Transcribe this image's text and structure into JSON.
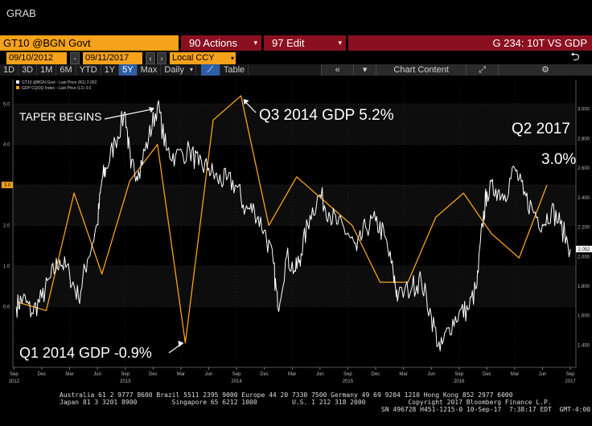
{
  "header": {
    "grab_label": "GRAB"
  },
  "toolbar": {
    "ticker": "GT10 @BGN Govt",
    "actions_label": "90 Actions",
    "edit_label": "97 Edit",
    "chart_title": "G 234: 10T VS GDP",
    "start_date": "09/10/2012",
    "end_date": "09/11/2017",
    "currency": "Local CCY",
    "periods": [
      "1D",
      "3D",
      "1M",
      "6M",
      "YTD",
      "1Y",
      "5Y",
      "Max"
    ],
    "active_period": "5Y",
    "frequency": "Daily",
    "table_label": "Table",
    "chart_content_label": "Chart Content"
  },
  "footer": {
    "line1": "Australia 61 2 9777 8600 Brazil 5511 2395 9000 Europe 44 20 7330 7500 Germany 49 69 9204 1210 Hong Kong 852 2977 6000",
    "line2": "Japan 81 3 3201 8900         Singapore 65 6212 1000         U.S. 1 212 318 2000           Copyright 2017 Bloomberg Finance L.P.",
    "line3": "SN 496728 H451-1215-0 10-Sep-17  7:38:17 EDT  GMT-4:00"
  },
  "chart_data": {
    "type": "line",
    "legend": [
      {
        "label": "GT10 @BGN Govt - Last Price (R1) 2.052",
        "color": "#ffffff"
      },
      {
        "label": "GDP CQOQ Index - Last Price (L1) 3.0",
        "color": "#f7a21b"
      }
    ],
    "legend_placement": "top-left",
    "left_axis": {
      "ticks": [
        0.0,
        1.0,
        2.0,
        3.0,
        4.0,
        5.0
      ],
      "tick_labels": [
        "0.0",
        "1.0",
        "2.0",
        "3.0",
        "4.0",
        "5.0"
      ],
      "range": [
        -1.5,
        5.6
      ],
      "current_value_label": "3.0"
    },
    "right_axis": {
      "ticks": [
        1.4,
        1.6,
        1.8,
        2.0,
        2.2,
        2.4,
        2.6,
        2.8,
        3.0
      ],
      "tick_labels": [
        "1.400",
        "1.600",
        "1.800",
        "2.000",
        "2.200",
        "2.400",
        "2.600",
        "2.800",
        "3.000"
      ],
      "range": [
        1.25,
        3.2
      ],
      "current_value_label": "2.052"
    },
    "x_axis": {
      "range": [
        2012.66,
        2017.72
      ],
      "ticks": [
        {
          "t": 2012.67,
          "label": "Sep",
          "year": "2012"
        },
        {
          "t": 2012.92,
          "label": "Dec",
          "year": ""
        },
        {
          "t": 2013.17,
          "label": "Mar",
          "year": ""
        },
        {
          "t": 2013.42,
          "label": "Jun",
          "year": ""
        },
        {
          "t": 2013.67,
          "label": "Sep",
          "year": "2013"
        },
        {
          "t": 2013.92,
          "label": "Dec",
          "year": ""
        },
        {
          "t": 2014.17,
          "label": "Mar",
          "year": ""
        },
        {
          "t": 2014.42,
          "label": "Jun",
          "year": ""
        },
        {
          "t": 2014.67,
          "label": "Sep",
          "year": "2014"
        },
        {
          "t": 2014.92,
          "label": "Dec",
          "year": ""
        },
        {
          "t": 2015.17,
          "label": "Mar",
          "year": ""
        },
        {
          "t": 2015.42,
          "label": "Jun",
          "year": ""
        },
        {
          "t": 2015.67,
          "label": "Sep",
          "year": "2015"
        },
        {
          "t": 2015.92,
          "label": "Dec",
          "year": ""
        },
        {
          "t": 2016.17,
          "label": "Mar",
          "year": ""
        },
        {
          "t": 2016.42,
          "label": "Jun",
          "year": ""
        },
        {
          "t": 2016.67,
          "label": "Sep",
          "year": "2016"
        },
        {
          "t": 2016.92,
          "label": "Dec",
          "year": ""
        },
        {
          "t": 2017.17,
          "label": "Mar",
          "year": ""
        },
        {
          "t": 2017.42,
          "label": "Jun",
          "year": ""
        },
        {
          "t": 2017.67,
          "label": "Sep",
          "year": "2017"
        }
      ]
    },
    "grid": true,
    "series": [
      {
        "name": "GT10 @BGN Govt",
        "axis": "right",
        "color": "#ffffff",
        "points": [
          [
            2012.69,
            1.66
          ],
          [
            2012.75,
            1.72
          ],
          [
            2012.83,
            1.62
          ],
          [
            2012.92,
            1.72
          ],
          [
            2013.0,
            1.86
          ],
          [
            2013.08,
            1.98
          ],
          [
            2013.17,
            1.88
          ],
          [
            2013.25,
            1.72
          ],
          [
            2013.33,
            1.98
          ],
          [
            2013.42,
            2.22
          ],
          [
            2013.46,
            2.52
          ],
          [
            2013.5,
            2.6
          ],
          [
            2013.58,
            2.78
          ],
          [
            2013.67,
            2.98
          ],
          [
            2013.72,
            2.6
          ],
          [
            2013.79,
            2.58
          ],
          [
            2013.88,
            2.8
          ],
          [
            2013.96,
            3.03
          ],
          [
            2014.04,
            2.72
          ],
          [
            2014.12,
            2.68
          ],
          [
            2014.25,
            2.72
          ],
          [
            2014.33,
            2.62
          ],
          [
            2014.42,
            2.6
          ],
          [
            2014.5,
            2.52
          ],
          [
            2014.58,
            2.52
          ],
          [
            2014.67,
            2.48
          ],
          [
            2014.75,
            2.32
          ],
          [
            2014.83,
            2.32
          ],
          [
            2014.92,
            2.18
          ],
          [
            2015.0,
            1.96
          ],
          [
            2015.04,
            1.66
          ],
          [
            2015.12,
            2.0
          ],
          [
            2015.2,
            1.9
          ],
          [
            2015.25,
            2.02
          ],
          [
            2015.33,
            2.28
          ],
          [
            2015.42,
            2.42
          ],
          [
            2015.5,
            2.3
          ],
          [
            2015.58,
            2.22
          ],
          [
            2015.67,
            2.16
          ],
          [
            2015.75,
            2.04
          ],
          [
            2015.83,
            2.2
          ],
          [
            2015.92,
            2.24
          ],
          [
            2016.0,
            2.14
          ],
          [
            2016.08,
            1.88
          ],
          [
            2016.12,
            1.72
          ],
          [
            2016.25,
            1.8
          ],
          [
            2016.33,
            1.84
          ],
          [
            2016.42,
            1.6
          ],
          [
            2016.5,
            1.36
          ],
          [
            2016.58,
            1.52
          ],
          [
            2016.67,
            1.62
          ],
          [
            2016.75,
            1.64
          ],
          [
            2016.83,
            1.8
          ],
          [
            2016.88,
            2.22
          ],
          [
            2016.92,
            2.44
          ],
          [
            2017.0,
            2.46
          ],
          [
            2017.08,
            2.42
          ],
          [
            2017.17,
            2.6
          ],
          [
            2017.25,
            2.42
          ],
          [
            2017.33,
            2.32
          ],
          [
            2017.42,
            2.22
          ],
          [
            2017.5,
            2.32
          ],
          [
            2017.58,
            2.22
          ],
          [
            2017.67,
            2.052
          ]
        ]
      },
      {
        "name": "GDP CQOQ Index",
        "axis": "left",
        "color": "#f7a21b",
        "points": [
          [
            2012.71,
            0.1
          ],
          [
            2012.96,
            -0.1
          ],
          [
            2013.21,
            2.8
          ],
          [
            2013.46,
            0.8
          ],
          [
            2013.71,
            3.1
          ],
          [
            2013.96,
            4.0
          ],
          [
            2014.21,
            -0.9
          ],
          [
            2014.46,
            4.6
          ],
          [
            2014.71,
            5.2
          ],
          [
            2014.96,
            2.0
          ],
          [
            2015.21,
            3.2
          ],
          [
            2015.46,
            2.6
          ],
          [
            2015.71,
            2.0
          ],
          [
            2015.96,
            0.6
          ],
          [
            2016.21,
            0.6
          ],
          [
            2016.46,
            2.2
          ],
          [
            2016.71,
            2.8
          ],
          [
            2016.96,
            1.8
          ],
          [
            2017.21,
            1.2
          ],
          [
            2017.46,
            3.0
          ]
        ]
      }
    ],
    "annotations": [
      {
        "text": "TAPER BEGINS",
        "t": 2013.96,
        "v": 3.03,
        "axis": "right"
      },
      {
        "text": "Q3 2014 GDP 5.2%",
        "t": 2014.71,
        "v": 5.2,
        "axis": "left"
      },
      {
        "text": "Q2 2017",
        "t": 2017.46,
        "v": 3.0,
        "axis": "left"
      },
      {
        "text": "3.0%",
        "t": 2017.46,
        "v": 3.0,
        "axis": "left"
      },
      {
        "text": "Q1 2014 GDP -0.9%",
        "t": 2014.21,
        "v": -0.9,
        "axis": "left"
      }
    ]
  }
}
